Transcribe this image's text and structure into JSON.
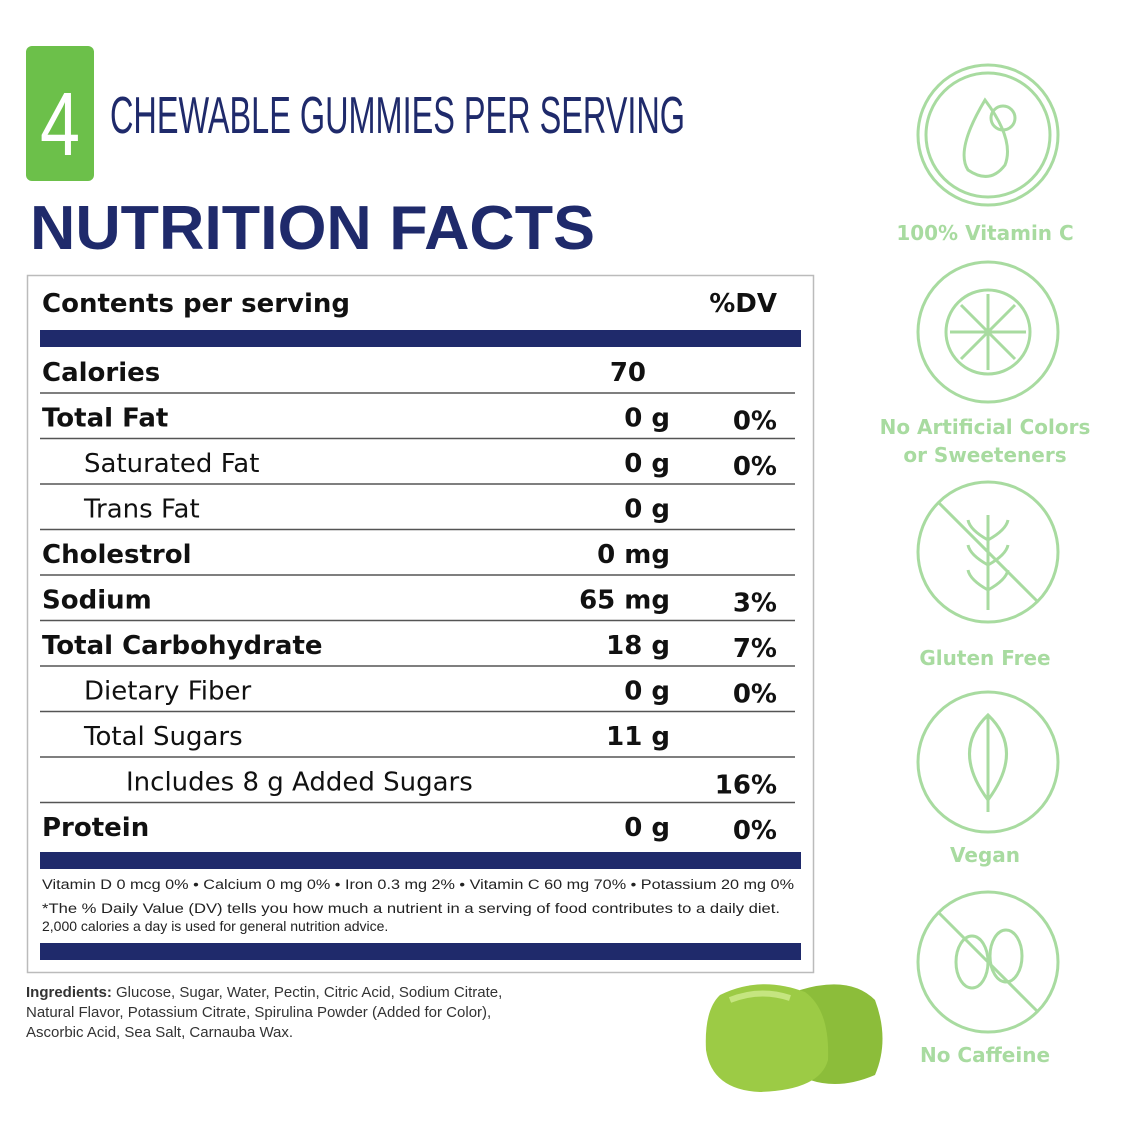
{
  "badge": {
    "number": "4",
    "text": "CHEWABLE GUMMIES PER SERVING"
  },
  "title": "NUTRITION FACTS",
  "table": {
    "header": {
      "label": "Contents per serving",
      "dv": "%DV"
    },
    "rows": [
      {
        "label": "Calories",
        "amount": "70"
      },
      {
        "label": "Total Fat",
        "amount": "0 g",
        "dv": "0%"
      },
      {
        "label": "Saturated Fat",
        "amount": "0 g",
        "dv": "0%"
      },
      {
        "label": "Trans Fat",
        "amount": "0 g"
      },
      {
        "label": "Cholestrol",
        "amount": "0 mg"
      },
      {
        "label": "Sodium",
        "amount": "65 mg",
        "dv": "3%"
      },
      {
        "label": "Total Carbohydrate",
        "amount": "18 g",
        "dv": "7%"
      },
      {
        "label": "Dietary Fiber",
        "amount": "0 g",
        "dv": "0%"
      },
      {
        "label": "Total Sugars",
        "amount": "11 g"
      },
      {
        "label": "Includes 8 g Added Sugars",
        "dv": "16%"
      },
      {
        "label": "Protein",
        "amount": "0 g",
        "dv": "0%"
      }
    ],
    "vitamins": "Vitamin D 0 mcg 0% • Calcium 0 mg 0% • Iron 0.3 mg 2% • Vitamin C 60 mg 70% • Potassium 20 mg 0%",
    "note": [
      "*The % Daily Value (DV) tells you how much a nutrient in a serving of food contributes to a daily diet.",
      "2,000 calories a day is used for general nutrition advice."
    ]
  },
  "ingredients": {
    "label": "Ingredients:",
    "lines": [
      "Glucose, Sugar, Water, Pectin, Citric Acid, Sodium Citrate,",
      "Natural Flavor, Potassium Citrate, Spirulina Powder (Added for Color),",
      "Ascorbic Acid, Sea Salt, Carnauba Wax."
    ]
  },
  "badges": [
    [
      "100% Vitamin C"
    ],
    [
      "No Artificial Colors",
      "or Sweeteners"
    ],
    [
      "Gluten Free"
    ],
    [
      "Vegan"
    ],
    [
      "No Caffeine"
    ]
  ]
}
